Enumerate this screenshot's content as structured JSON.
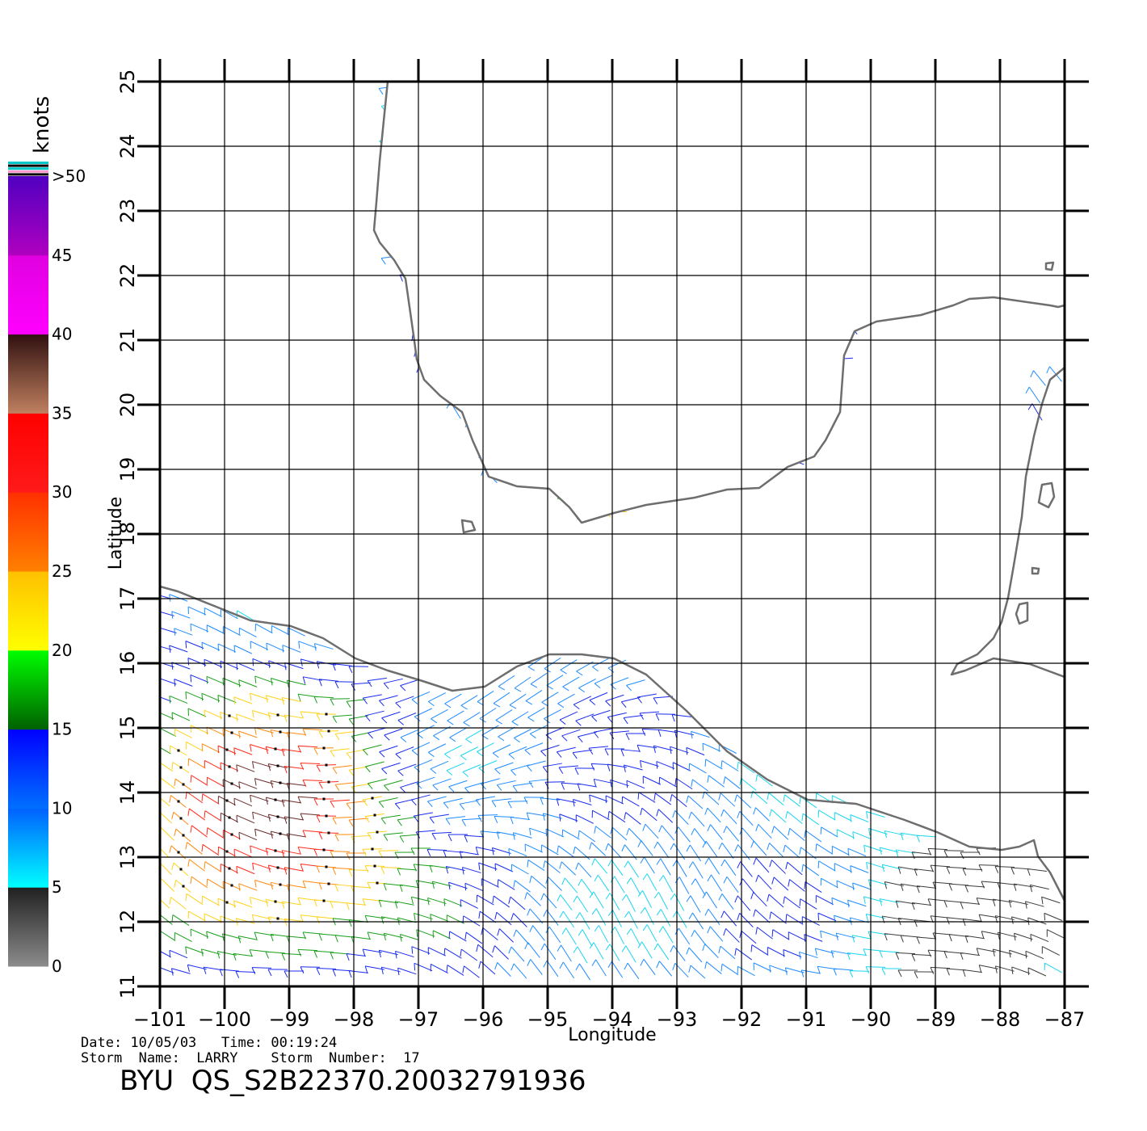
{
  "map": {
    "x_axis_label": "Longitude",
    "y_axis_label": "Latitude",
    "lon_ticks": [
      "−101",
      "−100",
      "−99",
      "−98",
      "−97",
      "−96",
      "−95",
      "−94",
      "−93",
      "−92",
      "−91",
      "−90",
      "−89",
      "−88",
      "−87"
    ],
    "lat_ticks": [
      "11",
      "12",
      "13",
      "14",
      "15",
      "16",
      "17",
      "18",
      "19",
      "20",
      "21",
      "22",
      "23",
      "24",
      "25"
    ],
    "lon_range": [
      -101,
      -87
    ],
    "lat_range": [
      11,
      25
    ],
    "coastline_color": "#6e6e6e",
    "grid_color": "#000000"
  },
  "color_scale": {
    "unit": "knots",
    "labels": [
      "0",
      "5",
      "10",
      "15",
      "20",
      "25",
      "30",
      "35",
      "40",
      "45",
      ">50"
    ],
    "bands": [
      {
        "from": 0,
        "to": 5,
        "colors": [
          "#8c8c8c",
          "#202020"
        ]
      },
      {
        "from": 5,
        "to": 10,
        "colors": [
          "#00ffff",
          "#0060ff"
        ]
      },
      {
        "from": 10,
        "to": 15,
        "colors": [
          "#0070ff",
          "#0000ff"
        ]
      },
      {
        "from": 15,
        "to": 20,
        "colors": [
          "#006000",
          "#00ff00"
        ]
      },
      {
        "from": 20,
        "to": 25,
        "colors": [
          "#ffff00",
          "#ffc000"
        ]
      },
      {
        "from": 25,
        "to": 30,
        "colors": [
          "#ff8000",
          "#ff3000"
        ]
      },
      {
        "from": 30,
        "to": 35,
        "colors": [
          "#ff1a1a",
          "#ff0000"
        ]
      },
      {
        "from": 35,
        "to": 40,
        "colors": [
          "#c08060",
          "#301010"
        ]
      },
      {
        "from": 40,
        "to": 45,
        "colors": [
          "#ff00ff",
          "#e000e0"
        ]
      },
      {
        "from": 45,
        "to": 50,
        "colors": [
          "#b000c0",
          "#5000c0"
        ]
      }
    ]
  },
  "meta": {
    "line1": "Date: 10/05/03   Time: 00:19:24",
    "line2": "Storm  Name:  LARRY    Storm  Number:  17",
    "product": "BYU  QS_S2B22370.20032791936"
  }
}
